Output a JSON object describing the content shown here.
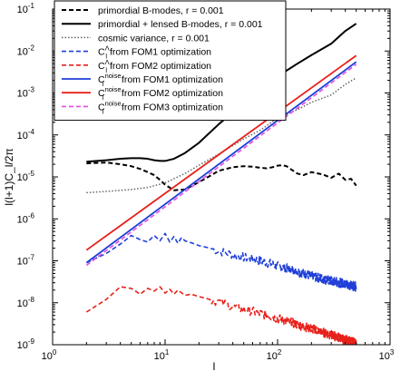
{
  "chart_data": {
    "type": "line",
    "xlabel": "l",
    "ylabel": "l(l+1)C_l/2π",
    "xscale": "log",
    "yscale": "log",
    "xlim": [
      1,
      1000
    ],
    "ylim": [
      1e-09,
      0.1
    ],
    "grid": false,
    "legend_position": "top-left",
    "x_ticks": [
      {
        "value": 1,
        "base": "10",
        "exp": "0"
      },
      {
        "value": 10,
        "base": "10",
        "exp": "1"
      },
      {
        "value": 100,
        "base": "10",
        "exp": "2"
      },
      {
        "value": 1000,
        "base": "10",
        "exp": "3"
      }
    ],
    "y_ticks": [
      {
        "value": 1e-09,
        "base": "10",
        "exp": "-9"
      },
      {
        "value": 1e-08,
        "base": "10",
        "exp": "-8"
      },
      {
        "value": 1e-07,
        "base": "10",
        "exp": "-7"
      },
      {
        "value": 1e-06,
        "base": "10",
        "exp": "-6"
      },
      {
        "value": 1e-05,
        "base": "10",
        "exp": "-5"
      },
      {
        "value": 0.0001,
        "base": "10",
        "exp": "-4"
      },
      {
        "value": 0.001,
        "base": "10",
        "exp": "-3"
      },
      {
        "value": 0.01,
        "base": "10",
        "exp": "-2"
      },
      {
        "value": 0.1,
        "base": "10",
        "exp": "-1"
      }
    ],
    "series": [
      {
        "legend": {
          "main": "primordial B-modes, r = 0.001"
        },
        "color": "#000000",
        "dash": "5,3",
        "width": 2,
        "x": [
          2,
          3,
          4,
          5,
          6,
          7,
          8,
          9,
          10,
          12,
          15,
          20,
          25,
          30,
          40,
          50,
          60,
          70,
          80,
          90,
          100,
          110,
          120,
          130,
          150,
          170,
          200,
          250,
          300,
          350,
          400,
          450,
          500
        ],
        "y": [
          2.1e-05,
          2.2e-05,
          2e-05,
          1.8e-05,
          1.55e-05,
          1.3e-05,
          1.1e-05,
          8.5e-06,
          6.5e-06,
          4.8e-06,
          5e-06,
          7.5e-06,
          1.05e-05,
          1.4e-05,
          1.7e-05,
          1.8e-05,
          1.75e-05,
          1.65e-05,
          1.6e-05,
          1.7e-05,
          1.85e-05,
          1.9e-05,
          1.8e-05,
          1.55e-05,
          1.2e-05,
          1.1e-05,
          1.3e-05,
          1.15e-05,
          9.5e-06,
          1.2e-05,
          8.5e-06,
          9e-06,
          6.2e-06
        ]
      },
      {
        "legend": {
          "main": "primordial + lensed B-modes, r = 0.001"
        },
        "color": "#000000",
        "dash": "",
        "width": 2,
        "x": [
          2,
          3,
          4,
          5,
          6,
          7,
          8,
          9,
          10,
          12,
          15,
          20,
          30,
          40,
          50,
          70,
          100,
          150,
          200,
          300,
          400,
          500
        ],
        "y": [
          2.3e-05,
          2.5e-05,
          2.7e-05,
          2.8e-05,
          2.8e-05,
          2.7e-05,
          2.5e-05,
          2.4e-05,
          2.4e-05,
          2.7e-05,
          3.7e-05,
          6.5e-05,
          0.00018,
          0.00035,
          0.0006,
          0.0012,
          0.0025,
          0.005,
          0.008,
          0.015,
          0.03,
          0.045
        ]
      },
      {
        "legend": {
          "main": "cosmic variance, r = 0.001"
        },
        "color": "#666666",
        "dash": "1.5,2",
        "width": 1.5,
        "x": [
          2,
          3,
          5,
          7,
          10,
          15,
          20,
          30,
          50,
          70,
          100,
          150,
          200,
          300,
          400,
          500
        ],
        "y": [
          4.2e-06,
          4.5e-06,
          5e-06,
          5.6e-06,
          7.2e-06,
          1.2e-05,
          1.9e-05,
          3.5e-05,
          8e-05,
          0.00013,
          0.00025,
          0.0004,
          0.0006,
          0.0009,
          0.0016,
          0.0023
        ]
      },
      {
        "legend": {
          "main": "C",
          "sup": "Λ",
          "sub": "l",
          "rest": " from FOM1 optimization"
        },
        "color": "#1f3fd8",
        "dash": "5,3",
        "width": 1.6,
        "x": [
          2,
          3,
          4,
          5,
          6,
          7,
          8,
          9,
          10,
          11,
          12,
          13,
          14,
          15,
          17,
          20,
          25,
          30,
          40,
          50,
          70,
          100,
          150,
          200,
          300,
          400,
          500
        ],
        "y": [
          9e-08,
          1.5e-07,
          2.5e-07,
          4e-07,
          3.2e-07,
          2.8e-07,
          4e-07,
          3e-07,
          4.5e-07,
          2.8e-07,
          3.8e-07,
          2.6e-07,
          3.6e-07,
          3e-07,
          2.7e-07,
          2.3e-07,
          2e-07,
          1.7e-07,
          1.4e-07,
          1.2e-07,
          1e-07,
          7.5e-08,
          5.5e-08,
          4.3e-08,
          3.3e-08,
          2.8e-08,
          2.4e-08
        ]
      },
      {
        "legend": {
          "main": "C",
          "sup": "Λ",
          "sub": "l",
          "rest": " from FOM2 optimization"
        },
        "color": "#e8201a",
        "dash": "5,3",
        "width": 1.6,
        "x": [
          2,
          3,
          4,
          5,
          6,
          7,
          8,
          9,
          10,
          11,
          12,
          13,
          15,
          17,
          20,
          25,
          30,
          40,
          50,
          70,
          100,
          150,
          200,
          300,
          400,
          500
        ],
        "y": [
          6e-09,
          1.2e-08,
          2.4e-08,
          2.2e-08,
          1.6e-08,
          2.2e-08,
          1.9e-08,
          2.4e-08,
          1.7e-08,
          2.1e-08,
          1.6e-08,
          2e-08,
          1.5e-08,
          1.6e-08,
          1.4e-08,
          1.2e-08,
          1.05e-08,
          8e-09,
          7e-09,
          5.5e-09,
          4.2e-09,
          3e-09,
          2.4e-09,
          1.7e-09,
          1.3e-09,
          1.1e-09
        ]
      },
      {
        "legend": {
          "main": "C",
          "sup": "noise",
          "sub": "l",
          "rest": " from FOM1 optimization"
        },
        "color": "#1f3fd8",
        "dash": "",
        "width": 1.8,
        "x": [
          2,
          500
        ],
        "y": [
          9e-08,
          0.0055
        ]
      },
      {
        "legend": {
          "main": "C",
          "sup": "noise",
          "sub": "l",
          "rest": " from FOM2 optimization"
        },
        "color": "#e8201a",
        "dash": "",
        "width": 1.8,
        "x": [
          2,
          500
        ],
        "y": [
          1.8e-07,
          0.0078
        ]
      },
      {
        "legend": {
          "main": "C",
          "sup": "noise",
          "sub": "l",
          "rest": " from FOM3 optimization"
        },
        "color": "#e04fe0",
        "dash": "5,3",
        "width": 1.6,
        "x": [
          2,
          500
        ],
        "y": [
          7.8e-08,
          0.0048
        ]
      }
    ]
  }
}
